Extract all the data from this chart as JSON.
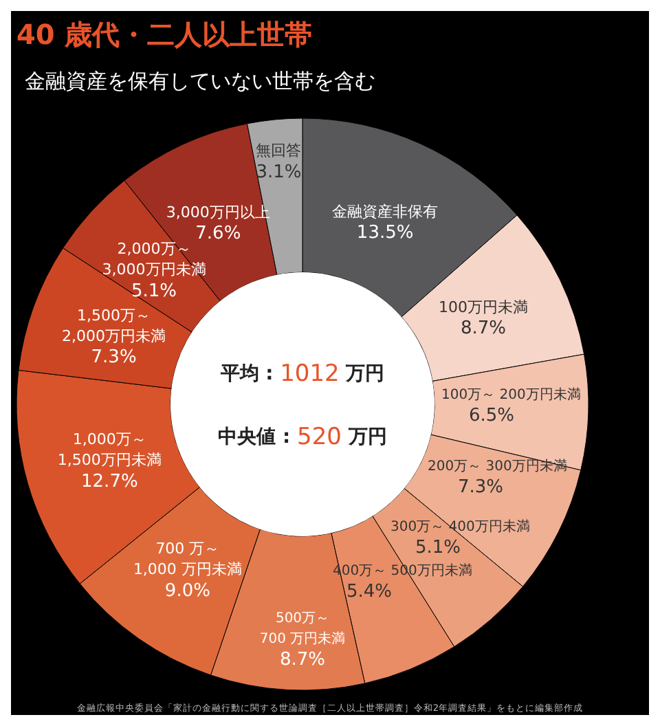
{
  "chart_data": {
    "type": "donut",
    "title": "40 歳代・二人以上世帯",
    "subtitle": "金融資産を保有していない世帯を含む",
    "categories": [
      "金融資産非保有",
      "100万円未満",
      "100万～ 200万円未満",
      "200万～ 300万円未満",
      "300万～ 400万円未満",
      "400万～ 500万円未満",
      "500万～\n700 万円未満",
      "700 万～\n1,000 万円未満",
      "1,000万～\n1,500万円未満",
      "1,500万～\n2,000万円未満",
      "2,000万～\n3,000万円未満",
      "3,000万円以上",
      "無回答"
    ],
    "values": [
      13.5,
      8.7,
      6.5,
      7.3,
      5.1,
      5.4,
      8.7,
      9.0,
      12.7,
      7.3,
      5.1,
      7.6,
      3.1
    ],
    "colors": [
      "#58585a",
      "#f6d6c9",
      "#f3c3ae",
      "#efb094",
      "#ec9f7c",
      "#e98d66",
      "#e37b50",
      "#de6a3b",
      "#d9542b",
      "#cc4624",
      "#ba3b22",
      "#9f2f22",
      "#a8a8a8"
    ],
    "value_labels": [
      "13.5%",
      "8.7%",
      "6.5%",
      "7.3%",
      "5.1%",
      "5.4%",
      "8.7%",
      "9.0%",
      "12.7%",
      "7.3%",
      "5.1%",
      "7.6%",
      "3.1%"
    ],
    "annotations": [
      "平均 : 1012 万円",
      "中央値 : 520 万円",
      "金融広報中央委員会「家計の金融行動に関する世論調査［二人以上世帯調査］令和2年調査結果」をもとに編集部作成"
    ]
  }
}
